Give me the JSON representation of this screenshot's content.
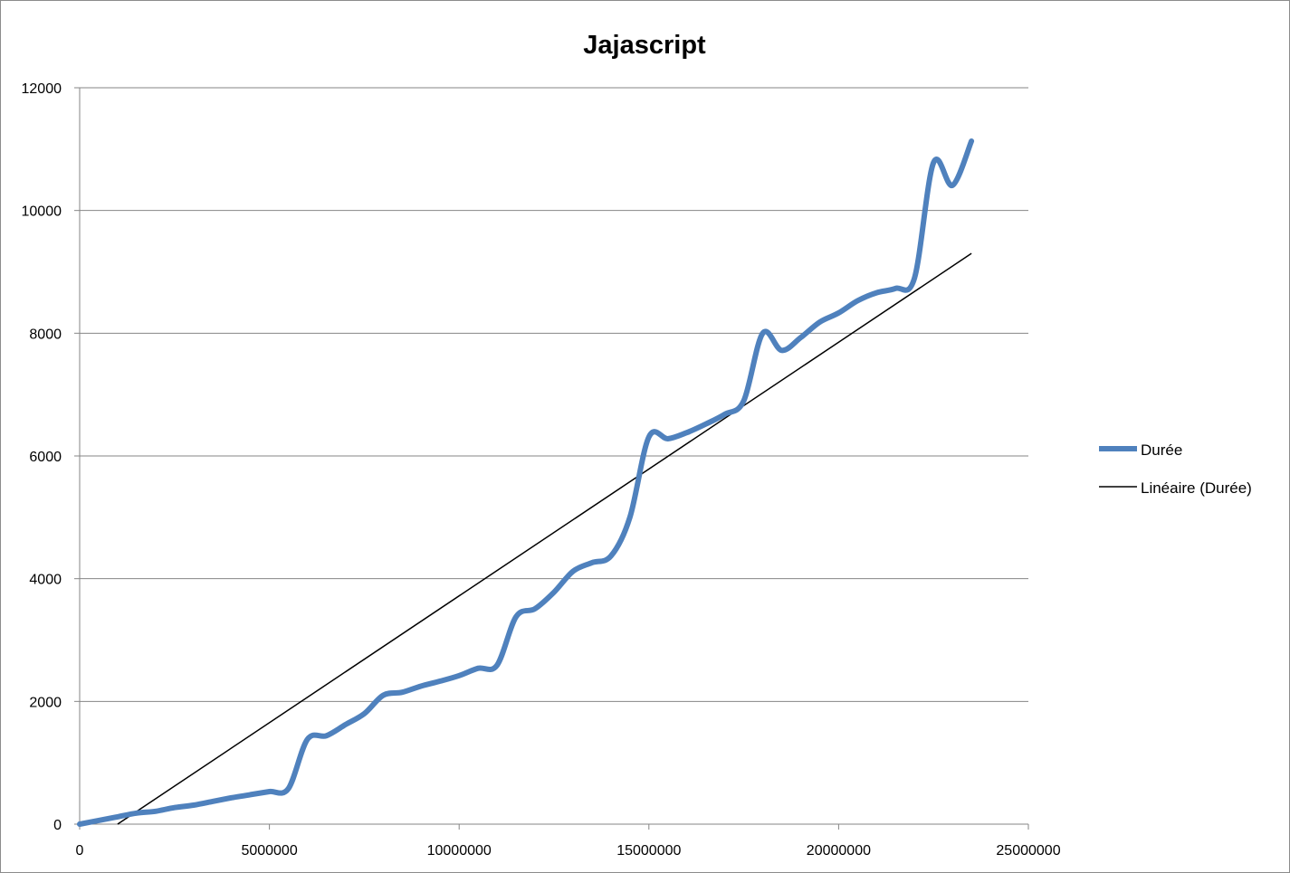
{
  "chart_data": {
    "type": "line",
    "title": "Jajascript",
    "xlabel": "",
    "ylabel": "",
    "xlim": [
      0,
      25000000
    ],
    "ylim": [
      0,
      12000
    ],
    "x_ticks": [
      "0",
      "5000000",
      "10000000",
      "15000000",
      "20000000",
      "25000000"
    ],
    "y_ticks": [
      "0",
      "2000",
      "4000",
      "6000",
      "8000",
      "10000",
      "12000"
    ],
    "grid": "horizontal",
    "legend_position": "right",
    "series": [
      {
        "name": "Durée",
        "color": "#4F81BD",
        "x": [
          0,
          500000,
          1000000,
          1500000,
          2000000,
          2500000,
          3000000,
          3500000,
          4000000,
          4500000,
          5000000,
          5500000,
          6000000,
          6500000,
          7000000,
          7500000,
          8000000,
          8500000,
          9000000,
          9500000,
          10000000,
          10500000,
          11000000,
          11500000,
          12000000,
          12500000,
          13000000,
          13500000,
          14000000,
          14500000,
          15000000,
          15500000,
          16000000,
          16500000,
          17000000,
          17500000,
          18000000,
          18500000,
          19000000,
          19500000,
          20000000,
          20500000,
          21000000,
          21500000,
          22000000,
          22500000,
          23000000,
          23500000
        ],
        "values": [
          0,
          60,
          120,
          180,
          210,
          270,
          310,
          370,
          430,
          480,
          530,
          580,
          1380,
          1440,
          1620,
          1800,
          2100,
          2150,
          2250,
          2330,
          2420,
          2540,
          2590,
          3380,
          3510,
          3780,
          4120,
          4260,
          4370,
          5000,
          6310,
          6280,
          6380,
          6520,
          6680,
          6900,
          8000,
          7720,
          7930,
          8180,
          8330,
          8530,
          8660,
          8730,
          8900,
          10780,
          10410,
          11130
        ]
      },
      {
        "name": "Linéaire (Durée)",
        "color": "#000000",
        "x": [
          1000000,
          23500000
        ],
        "values": [
          0,
          9300
        ]
      }
    ]
  }
}
